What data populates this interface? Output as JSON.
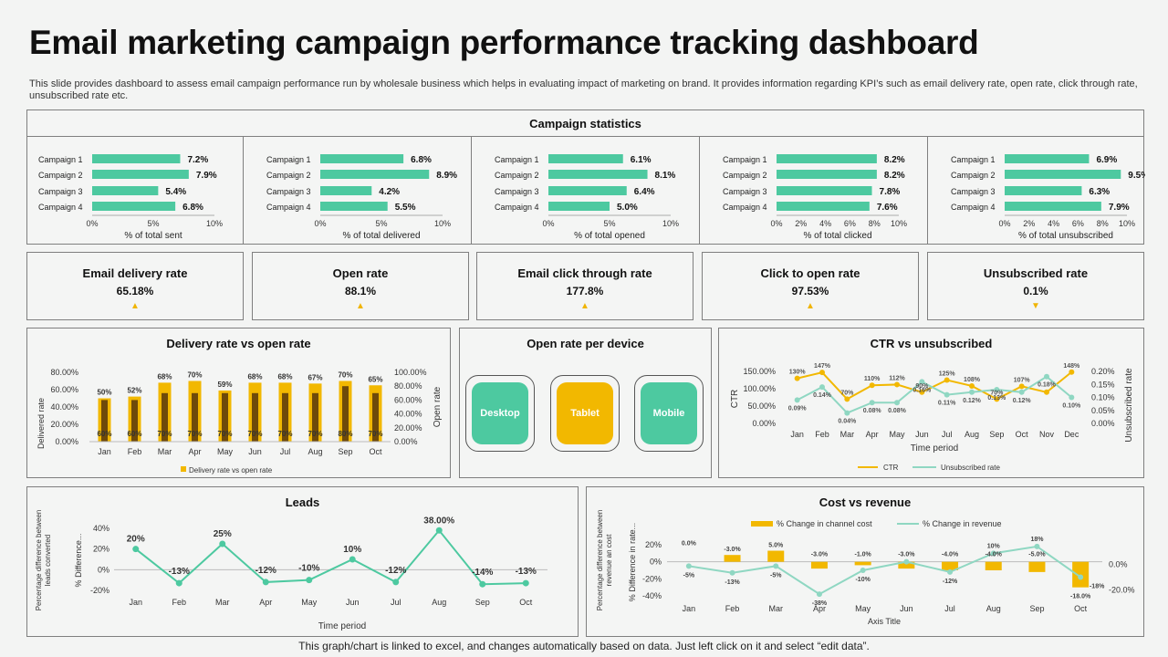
{
  "header": {
    "title": "Email marketing campaign performance tracking dashboard",
    "description": "This slide provides dashboard to assess email campaign performance run by wholesale business which helps in evaluating impact of marketing on brand. It provides information regarding KPI’s such as email delivery rate, open rate, click through rate, unsubscribed rate etc."
  },
  "colors": {
    "green": "#4dc9a0",
    "yellow": "#f2b800",
    "dark": "#6e4a0a",
    "teal_line": "#8fd7c2"
  },
  "campaign_stats": {
    "title": "Campaign statistics",
    "categories": [
      "Campaign 1",
      "Campaign 2",
      "Campaign 3",
      "Campaign 4"
    ],
    "panels": [
      {
        "xlabel": "% of total sent",
        "values": [
          7.2,
          7.9,
          5.4,
          6.8
        ],
        "labels": [
          "7.2%",
          "7.9%",
          "5.4%",
          "6.8%"
        ],
        "ticks": [
          "0%",
          "5%",
          "10%"
        ]
      },
      {
        "xlabel": "% of total delivered",
        "values": [
          6.8,
          8.9,
          4.2,
          5.5
        ],
        "labels": [
          "6.8%",
          "8.9%",
          "4.2%",
          "5.5%"
        ],
        "ticks": [
          "0%",
          "5%",
          "10%"
        ]
      },
      {
        "xlabel": "% of total opened",
        "values": [
          6.1,
          8.1,
          6.4,
          5.0
        ],
        "labels": [
          "6.1%",
          "8.1%",
          "6.4%",
          "5.0%"
        ],
        "ticks": [
          "0%",
          "5%",
          "10%"
        ]
      },
      {
        "xlabel": "% of total clicked",
        "values": [
          8.2,
          8.2,
          7.8,
          7.6
        ],
        "labels": [
          "8.2%",
          "8.2%",
          "7.8%",
          "7.6%"
        ],
        "ticks": [
          "0%",
          "2%",
          "4%",
          "6%",
          "8%",
          "10%"
        ]
      },
      {
        "xlabel": "% of total unsubscribed",
        "values": [
          6.9,
          9.5,
          6.3,
          7.9
        ],
        "labels": [
          "6.9%",
          "9.5%",
          "6.3%",
          "7.9%"
        ],
        "ticks": [
          "0%",
          "2%",
          "4%",
          "6%",
          "8%",
          "10%"
        ]
      }
    ]
  },
  "kpis": [
    {
      "label": "Email delivery rate",
      "value": "65.18%",
      "trend": "up"
    },
    {
      "label": "Open rate",
      "value": "88.1%",
      "trend": "up"
    },
    {
      "label": "Email click through rate",
      "value": "177.8%",
      "trend": "up"
    },
    {
      "label": "Click to open rate",
      "value": "97.53%",
      "trend": "up"
    },
    {
      "label": "Unsubscribed rate",
      "value": "0.1%",
      "trend": "down"
    }
  ],
  "chart_data": [
    {
      "type": "bar",
      "title": "Delivery rate vs open rate",
      "categories": [
        "Jan",
        "Feb",
        "Mar",
        "Apr",
        "May",
        "Jun",
        "Jul",
        "Aug",
        "Sep",
        "Oct"
      ],
      "series": [
        {
          "name": "Delivery rate vs open rate",
          "axis": "left",
          "values": [
            50,
            52,
            68,
            70,
            59,
            68,
            68,
            67,
            70,
            65
          ],
          "labels": [
            "50%",
            "52%",
            "68%",
            "70%",
            "59%",
            "68%",
            "68%",
            "67%",
            "70%",
            "65%"
          ]
        },
        {
          "name": "Open rate",
          "axis": "right",
          "values": [
            60,
            60,
            70,
            70,
            70,
            70,
            70,
            70,
            80,
            70
          ],
          "labels": [
            "60%",
            "60%",
            "70%",
            "70%",
            "70%",
            "70%",
            "70%",
            "70%",
            "80%",
            "70%"
          ]
        }
      ],
      "ylabel": "Delivered rate",
      "y2label": "Open rate",
      "yticks": [
        "0.00%",
        "20.00%",
        "40.00%",
        "60.00%",
        "80.00%"
      ],
      "y2ticks": [
        "0.00%",
        "20.00%",
        "40.00%",
        "60.00%",
        "80.00%",
        "100.00%"
      ],
      "ylim": [
        0,
        80
      ],
      "y2lim": [
        0,
        100
      ],
      "legend": "Delivery rate vs open rate"
    },
    {
      "type": "line",
      "title": "CTR vs unsubscribed",
      "categories": [
        "Jan",
        "Feb",
        "Mar",
        "Apr",
        "May",
        "Jun",
        "Jul",
        "Aug",
        "Sep",
        "Oct",
        "Nov",
        "Dec"
      ],
      "series": [
        {
          "name": "CTR",
          "axis": "left",
          "values": [
            130,
            147,
            70,
            110,
            112,
            90,
            125,
            108,
            70,
            107,
            90,
            148
          ],
          "labels": [
            "130%",
            "147%",
            "70%",
            "110%",
            "112%",
            "90%",
            "125%",
            "108%",
            "70%",
            "107%",
            "",
            "148%"
          ]
        },
        {
          "name": "Unsubscribed rate",
          "axis": "right",
          "values": [
            0.09,
            0.14,
            0.04,
            0.08,
            0.08,
            0.16,
            0.11,
            0.12,
            0.13,
            0.12,
            0.18,
            0.1
          ],
          "labels": [
            "0.09%",
            "0.14%",
            "0.04%",
            "0.08%",
            "0.08%",
            "0.16%",
            "0.11%",
            "0.12%",
            "0.13%",
            "0.12%",
            "0.18%",
            "0.10%"
          ]
        }
      ],
      "xlabel": "Time period",
      "ylabel": "CTR",
      "y2label": "Unsubscribed rate",
      "yticks": [
        "0.00%",
        "50.00%",
        "100.00%",
        "150.00%"
      ],
      "y2ticks": [
        "0.00%",
        "0.05%",
        "0.10%",
        "0.15%",
        "0.20%"
      ],
      "ylim": [
        0,
        150
      ],
      "y2lim": [
        0,
        0.2
      ]
    },
    {
      "type": "line",
      "title": "Leads",
      "categories": [
        "Jan",
        "Feb",
        "Mar",
        "Apr",
        "May",
        "Jun",
        "Jul",
        "Aug",
        "Sep",
        "Oct"
      ],
      "values": [
        20,
        -13,
        25,
        -12,
        -10,
        10,
        -12,
        38,
        -14,
        -13
      ],
      "labels": [
        "20%",
        "-13%",
        "25%",
        "-12%",
        "-10%",
        "10%",
        "-12%",
        "38.00%",
        "-14%",
        "-13%"
      ],
      "yticks": [
        "-20%",
        "0%",
        "20%",
        "40%"
      ],
      "ylim": [
        -20,
        40
      ],
      "xlabel": "Time period",
      "ylabel": "Percentage difference between leads converted",
      "ylabel_inner": "% Difference..."
    },
    {
      "type": "bar",
      "title": "Cost vs revenue",
      "categories": [
        "Jan",
        "Feb",
        "Mar",
        "Apr",
        "May",
        "Jun",
        "Jul",
        "Aug",
        "Sep",
        "Oct"
      ],
      "series": [
        {
          "name": "% Change in channel cost",
          "values": [
            0.0,
            -3.0,
            5.0,
            -3.0,
            -1.0,
            -3.0,
            -4.0,
            -4.0,
            -5.0,
            -18.0
          ],
          "labels": [
            "0.0%",
            "-3.0%",
            "5.0%",
            "-3.0%",
            "-1.0%",
            "-3.0%",
            "-4.0%",
            "-4.0%",
            "-5.0%",
            "-18.0%"
          ]
        },
        {
          "name": "% Change in revenue",
          "values": [
            -5,
            -13,
            -5,
            -38,
            -10,
            0,
            -12,
            10,
            18,
            -18
          ],
          "labels": [
            "-5%",
            "-13%",
            "-5%",
            "-38%",
            "-10%",
            "",
            "-12%",
            "10%",
            "18%",
            "-18%"
          ]
        }
      ],
      "bar_values": [
        8,
        8,
        13,
        -8,
        -4,
        -8,
        -10,
        -10,
        -12,
        -30
      ],
      "yticks": [
        "-40%",
        "-20%",
        "0%",
        "20%"
      ],
      "ylim": [
        -40,
        20
      ],
      "y2ticks": [
        "-20.0%",
        "0.0%"
      ],
      "xlabel": "Axis Title",
      "ylabel": "Percentage difference between revenue an cost",
      "ylabel_inner": "% Difference in rate..."
    }
  ],
  "device": {
    "title": "Open rate per device",
    "items": [
      "Desktop",
      "Tablet",
      "Mobile"
    ]
  },
  "footer": "This graph/chart is linked to excel, and changes automatically based on data. Just left click on it and select “edit data”."
}
